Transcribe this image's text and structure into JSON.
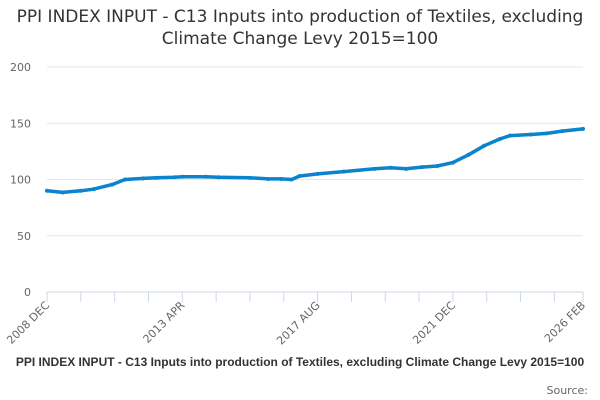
{
  "chart_data": {
    "type": "line",
    "title": "PPI INDEX INPUT - C13 Inputs into production of Textiles, excluding Climate Change Levy 2015=100",
    "footer_title": "PPI INDEX INPUT - C13 Inputs into production of Textiles, excluding Climate Change Levy 2015=100",
    "source_label": "Source:",
    "xlabel": "",
    "ylabel": "",
    "ylim": [
      0,
      200
    ],
    "yticks": [
      "0",
      "50",
      "100",
      "150",
      "200"
    ],
    "xlim": [
      "2008-12",
      "2026-02"
    ],
    "xticks": [
      {
        "date": "2008-12",
        "label": "2008 DEC"
      },
      {
        "date": "2013-04",
        "label": "2013 APR"
      },
      {
        "date": "2017-08",
        "label": "2017 AUG"
      },
      {
        "date": "2021-12",
        "label": "2021 DEC"
      },
      {
        "date": "2026-02",
        "label": "2026 FEB"
      }
    ],
    "grid": true,
    "legend": "none",
    "color": "#0b84cc",
    "points": [
      [
        "2008-12",
        90
      ],
      [
        "2009-06",
        88.5
      ],
      [
        "2010-01",
        90
      ],
      [
        "2010-06",
        91.5
      ],
      [
        "2011-01",
        95.5
      ],
      [
        "2011-06",
        100
      ],
      [
        "2012-01",
        101
      ],
      [
        "2012-06",
        101.5
      ],
      [
        "2013-01",
        102
      ],
      [
        "2013-04",
        102.5
      ],
      [
        "2014-01",
        102.5
      ],
      [
        "2014-06",
        102
      ],
      [
        "2015-06",
        101.5
      ],
      [
        "2016-01",
        100.5
      ],
      [
        "2016-06",
        100.5
      ],
      [
        "2016-10",
        100
      ],
      [
        "2017-01",
        103
      ],
      [
        "2017-08",
        105
      ],
      [
        "2018-06",
        107
      ],
      [
        "2019-06",
        109.5
      ],
      [
        "2019-12",
        110.5
      ],
      [
        "2020-06",
        109.5
      ],
      [
        "2020-12",
        111
      ],
      [
        "2021-06",
        112
      ],
      [
        "2021-12",
        115
      ],
      [
        "2022-06",
        122
      ],
      [
        "2022-12",
        130
      ],
      [
        "2023-06",
        136
      ],
      [
        "2023-10",
        139
      ],
      [
        "2024-06",
        140
      ],
      [
        "2024-12",
        141
      ],
      [
        "2025-06",
        143
      ],
      [
        "2026-02",
        145
      ]
    ]
  }
}
